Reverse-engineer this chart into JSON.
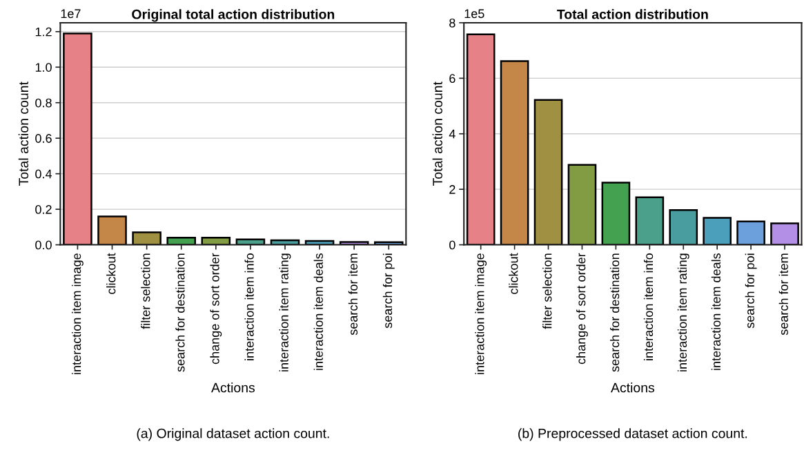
{
  "chart_data": [
    {
      "type": "bar",
      "title": "Original total action distribution",
      "xlabel": "Actions",
      "ylabel": "Total action count",
      "categories": [
        "interaction item image",
        "clickout",
        "filter selection",
        "search for destination",
        "change of sort order",
        "interaction item info",
        "interaction item rating",
        "interaction item deals",
        "search for item",
        "search for poi"
      ],
      "values": [
        1.19,
        0.16,
        0.07,
        0.04,
        0.04,
        0.03,
        0.025,
        0.022,
        0.016,
        0.015
      ],
      "colors": [
        "#e68187",
        "#c48748",
        "#a09142",
        "#43a150",
        "#829c43",
        "#4aa08a",
        "#4a9d9e",
        "#4c9fba",
        "#b38fe5",
        "#6ca0dc"
      ],
      "ylim": [
        0,
        1.25
      ],
      "yticks": [
        {
          "value": 0,
          "label": "0.0"
        },
        0.2,
        0.4,
        0.6,
        0.8,
        {
          "value": 1,
          "label": "1.0"
        },
        1.2
      ],
      "grid": "y",
      "annotations": [
        "1e7",
        "(a) Original dataset action count."
      ]
    },
    {
      "type": "bar",
      "title": "Total action distribution",
      "xlabel": "Actions",
      "ylabel": "Total action count",
      "categories": [
        "interaction item image",
        "clickout",
        "filter selection",
        "change of sort order",
        "search for destination",
        "interaction item info",
        "interaction item rating",
        "interaction item deals",
        "search for poi",
        "search for item"
      ],
      "values": [
        7.58,
        6.62,
        5.22,
        2.88,
        2.24,
        1.71,
        1.25,
        0.97,
        0.84,
        0.77
      ],
      "colors": [
        "#e68187",
        "#c48748",
        "#a09142",
        "#829c43",
        "#43a150",
        "#4aa08a",
        "#4a9d9e",
        "#4c9fba",
        "#6ca0dc",
        "#b38fe5"
      ],
      "ylim": [
        0,
        8
      ],
      "yticks": [
        0,
        2,
        4,
        6,
        8
      ],
      "grid": "y",
      "annotations": [
        "1e5",
        "(b) Preprocessed dataset action count."
      ]
    }
  ]
}
